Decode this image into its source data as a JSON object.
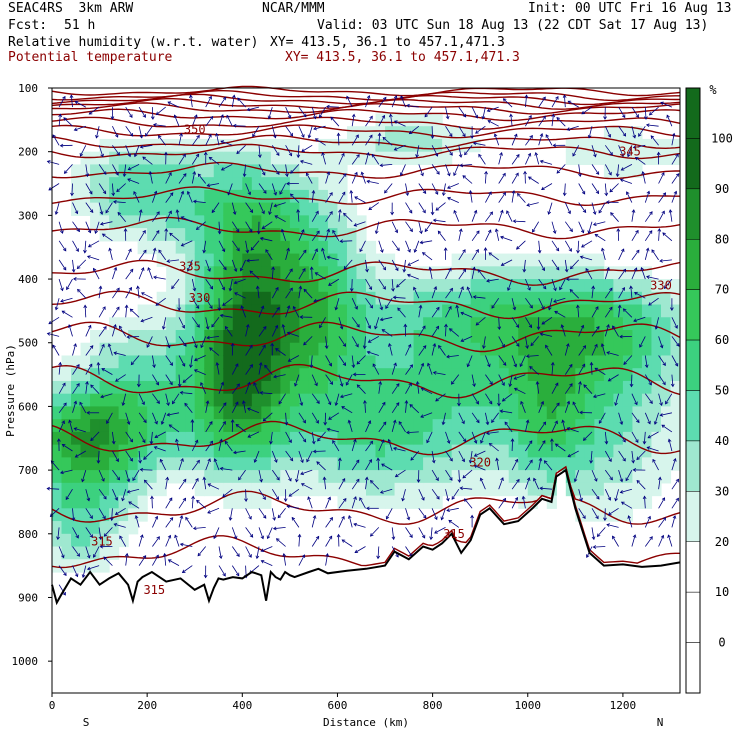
{
  "header": {
    "model": "SEAC4RS  3km ARW",
    "center": "NCAR/MMM",
    "init": "Init: 00 UTC Fri 16 Aug 13",
    "fcst_label": "Fcst:",
    "fcst_value": "51 h",
    "valid": "Valid: 03 UTC Sun 18 Aug 13 (22 CDT Sat 17 Aug 13)",
    "field1": "Relative humidity (w.r.t. water)",
    "xy1": "XY= 413.5, 36.1 to 457.1,471.3",
    "field2": "Potential temperature",
    "xy2": "XY= 413.5, 36.1 to 457.1,471.3"
  },
  "colors": {
    "rh_fill": [
      "#ffffff",
      "#ffffff",
      "#ffffff",
      "#d7f5ec",
      "#9fe8d0",
      "#5ddcb0",
      "#3cd17f",
      "#35c85a",
      "#2aae3c",
      "#1f8f2c",
      "#136a1c"
    ],
    "theta": "#8b0000",
    "wind": "#000080",
    "terrain": "#000000"
  },
  "chart_data": {
    "type": "heatmap",
    "title": "Relative humidity (w.r.t. water)",
    "overlay": "Potential temperature",
    "xlabel": "Distance (km)",
    "ylabel": "Pressure (hPa)",
    "xlim": [
      0,
      1320
    ],
    "ylim": [
      1050,
      100
    ],
    "x_ticks": [
      0,
      200,
      400,
      600,
      800,
      1000,
      1200
    ],
    "y_ticks": [
      100,
      200,
      300,
      400,
      500,
      600,
      700,
      800,
      900,
      1000
    ],
    "x_end_labels": [
      "S",
      "N"
    ],
    "colorbar": {
      "unit": "%",
      "levels": [
        0,
        10,
        20,
        30,
        40,
        50,
        60,
        70,
        80,
        90,
        100
      ]
    },
    "theta_contour_labels": [
      {
        "text": "350",
        "x": 300,
        "p": 165
      },
      {
        "text": "345",
        "x": 1215,
        "p": 200
      },
      {
        "text": "335",
        "x": 290,
        "p": 380
      },
      {
        "text": "330",
        "x": 310,
        "p": 430
      },
      {
        "text": "330",
        "x": 1280,
        "p": 410
      },
      {
        "text": "320",
        "x": 900,
        "p": 688
      },
      {
        "text": "315",
        "x": 105,
        "p": 812
      },
      {
        "text": "315",
        "x": 845,
        "p": 800
      },
      {
        "text": "315",
        "x": 215,
        "p": 888
      }
    ],
    "terrain_profile": {
      "x": [
        0,
        10,
        20,
        40,
        60,
        80,
        100,
        120,
        140,
        160,
        170,
        180,
        190,
        210,
        240,
        270,
        300,
        320,
        330,
        340,
        350,
        360,
        380,
        400,
        420,
        440,
        450,
        460,
        470,
        480,
        490,
        500,
        510,
        540,
        560,
        580,
        620,
        660,
        700,
        720,
        750,
        780,
        800,
        820,
        840,
        860,
        880,
        900,
        920,
        950,
        980,
        1010,
        1030,
        1050,
        1060,
        1080,
        1100,
        1130,
        1160,
        1200,
        1240,
        1280,
        1320
      ],
      "p": [
        880,
        908,
        895,
        870,
        880,
        860,
        880,
        870,
        862,
        880,
        905,
        875,
        868,
        860,
        875,
        870,
        888,
        880,
        905,
        885,
        870,
        872,
        868,
        870,
        860,
        865,
        905,
        860,
        868,
        872,
        860,
        865,
        868,
        860,
        855,
        862,
        858,
        855,
        850,
        828,
        840,
        820,
        825,
        815,
        800,
        830,
        810,
        770,
        760,
        785,
        780,
        760,
        745,
        750,
        710,
        700,
        760,
        830,
        850,
        848,
        852,
        850,
        845
      ]
    },
    "theta_levels_K": [
      310,
      315,
      320,
      325,
      330,
      335,
      340,
      345,
      350
    ]
  }
}
